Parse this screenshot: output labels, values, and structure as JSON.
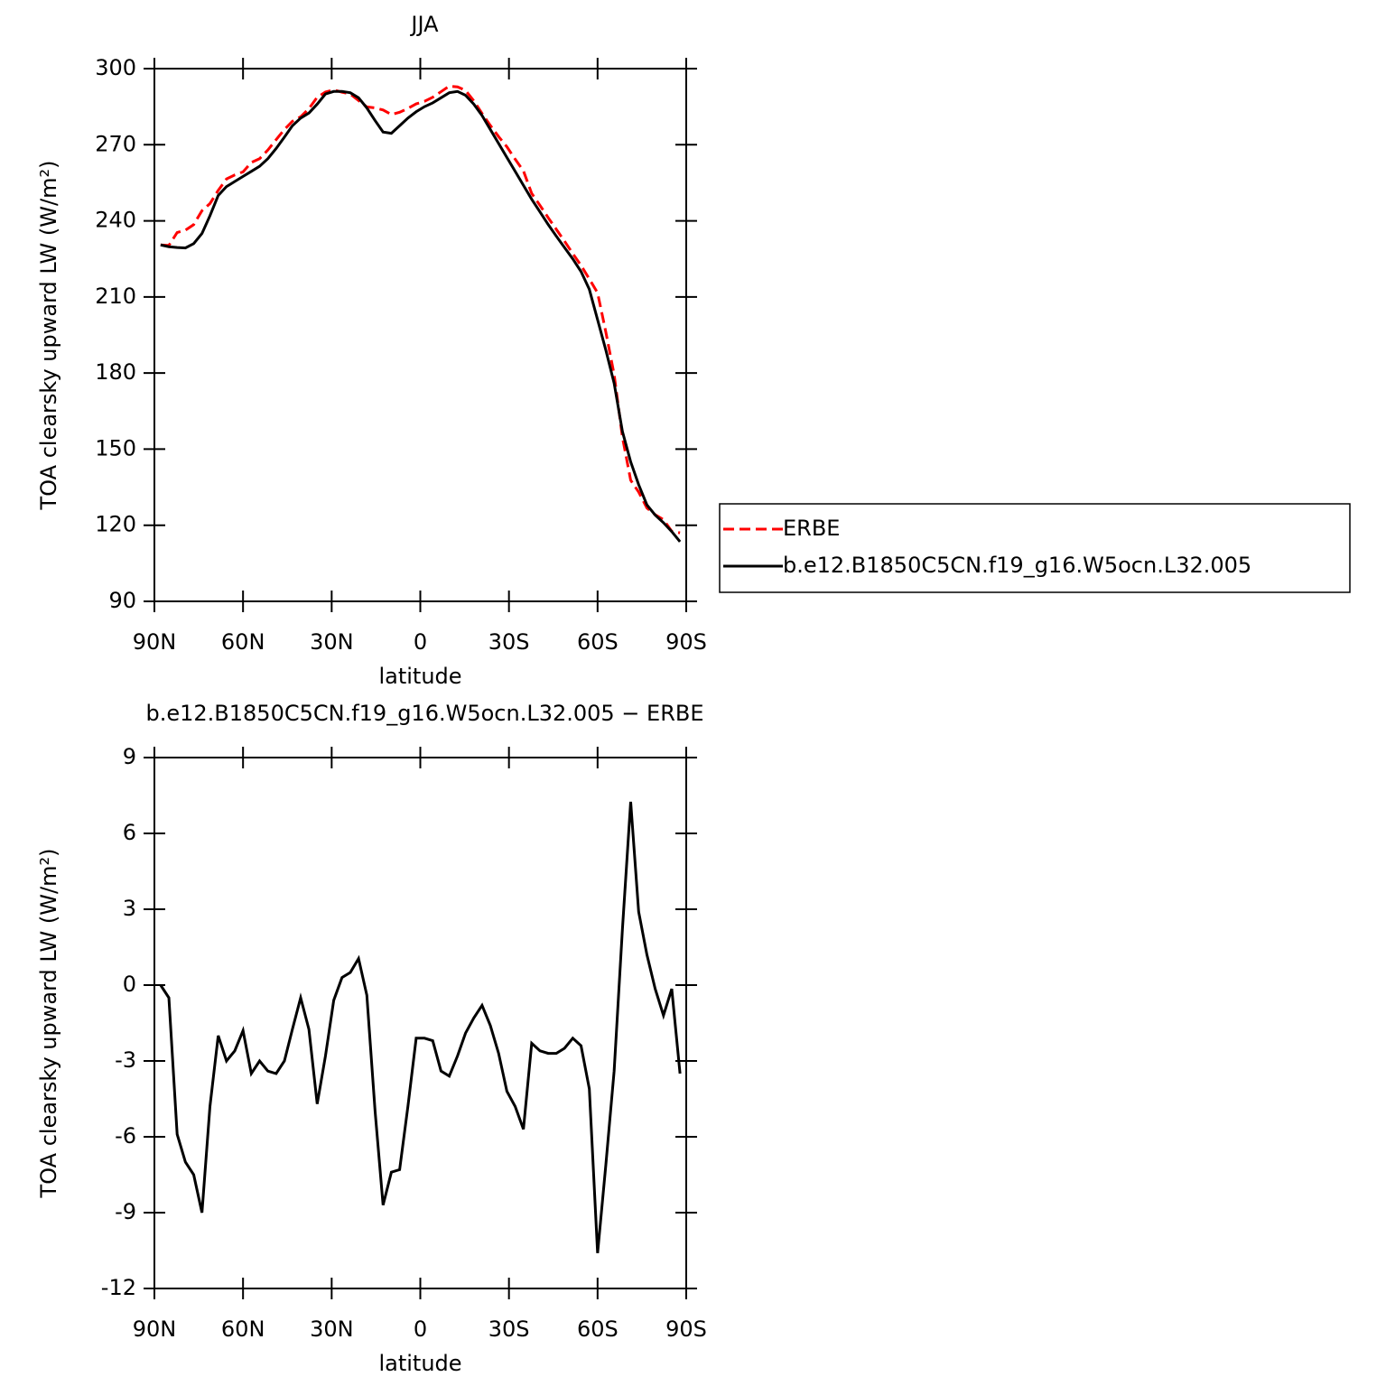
{
  "chart_data": [
    {
      "type": "line",
      "title": "JJA",
      "xlabel": "latitude",
      "ylabel": "TOA clearsky upward LW (W/m²)",
      "x": [
        87.9,
        85.1,
        82.3,
        79.5,
        76.7,
        73.9,
        71.2,
        68.4,
        65.6,
        62.8,
        60.0,
        57.2,
        54.4,
        51.6,
        48.8,
        46.0,
        43.3,
        40.5,
        37.7,
        34.9,
        32.1,
        29.3,
        26.5,
        23.7,
        20.9,
        18.1,
        15.3,
        12.6,
        9.8,
        7.0,
        4.2,
        1.4,
        -1.4,
        -4.2,
        -7.0,
        -9.8,
        -12.6,
        -15.3,
        -18.1,
        -20.9,
        -23.7,
        -26.5,
        -29.3,
        -32.1,
        -34.9,
        -37.7,
        -40.5,
        -43.3,
        -46.0,
        -48.8,
        -51.6,
        -54.4,
        -57.2,
        -60.0,
        -62.8,
        -65.6,
        -68.4,
        -71.2,
        -73.9,
        -76.7,
        -79.5,
        -82.3,
        -85.1,
        -87.9
      ],
      "series": [
        {
          "name": "ERBE",
          "color": "#ff0000",
          "dashed": true,
          "values": [
            230.5,
            230.3,
            235.4,
            236.3,
            238.5,
            244,
            246.8,
            252,
            256.5,
            258.1,
            259.3,
            263,
            264.5,
            267.9,
            272,
            276,
            279.25,
            281,
            284.25,
            288.7,
            290.8,
            291.6,
            290.7,
            290,
            287.45,
            284.9,
            284.5,
            283.7,
            281.9,
            282.8,
            284.3,
            286.1,
            287.1,
            288.7,
            290.9,
            293.1,
            292.8,
            291.4,
            287.3,
            282.3,
            277.6,
            273.2,
            269.2,
            264.3,
            259.7,
            250.8,
            246.1,
            241.2,
            236.7,
            232,
            227.1,
            222.4,
            217.1,
            211.6,
            196.1,
            179.4,
            154.8,
            137.75,
            133.1,
            126.8,
            124.15,
            122.2,
            117.65,
            117
          ]
        },
        {
          "name": "b.e12.B1850C5CN.f19_g16.W5ocn.L32.005",
          "color": "#000000",
          "dashed": false,
          "values": [
            230.5,
            229.8,
            229.5,
            229.3,
            231,
            235,
            242,
            250,
            253.5,
            255.5,
            257.5,
            259.5,
            261.5,
            264.5,
            268.5,
            273,
            277.5,
            280.5,
            282.5,
            286,
            290,
            291,
            291,
            290.5,
            288.5,
            284.5,
            279.5,
            275,
            274.5,
            277.5,
            280.5,
            283,
            285,
            286.5,
            288.5,
            290.5,
            291,
            289.5,
            286,
            281.5,
            276,
            270.5,
            265,
            259.5,
            254,
            248.5,
            243.5,
            238.5,
            234,
            229.5,
            225,
            220,
            213,
            201,
            189,
            176,
            157,
            145,
            136,
            128,
            124,
            121,
            117.5,
            113.5
          ]
        }
      ],
      "xlim": [
        90,
        -90
      ],
      "xticks": [
        {
          "value": 90,
          "label": "90N"
        },
        {
          "value": 60,
          "label": "60N"
        },
        {
          "value": 30,
          "label": "30N"
        },
        0,
        {
          "value": -30,
          "label": "30S"
        },
        {
          "value": -60,
          "label": "60S"
        },
        {
          "value": -90,
          "label": "90S"
        }
      ],
      "ylim": [
        90,
        300
      ],
      "yticks": [
        90,
        120,
        150,
        180,
        210,
        240,
        270,
        300
      ],
      "legend": "right"
    },
    {
      "type": "line",
      "title": "b.e12.B1850C5CN.f19_g16.W5ocn.L32.005 − ERBE",
      "xlabel": "latitude",
      "ylabel": "TOA clearsky upward LW (W/m²)",
      "x": [
        87.9,
        85.1,
        82.3,
        79.5,
        76.7,
        73.9,
        71.2,
        68.4,
        65.6,
        62.8,
        60.0,
        57.2,
        54.4,
        51.6,
        48.8,
        46.0,
        43.3,
        40.5,
        37.7,
        34.9,
        32.1,
        29.3,
        26.5,
        23.7,
        20.9,
        18.1,
        15.3,
        12.6,
        9.8,
        7.0,
        4.2,
        1.4,
        -1.4,
        -4.2,
        -7.0,
        -9.8,
        -12.6,
        -15.3,
        -18.1,
        -20.9,
        -23.7,
        -26.5,
        -29.3,
        -32.1,
        -34.9,
        -37.7,
        -40.5,
        -43.3,
        -46.0,
        -48.8,
        -51.6,
        -54.4,
        -57.2,
        -60.0,
        -62.8,
        -65.6,
        -68.4,
        -71.2,
        -73.9,
        -76.7,
        -79.5,
        -82.3,
        -85.1,
        -87.9
      ],
      "values": [
        0,
        -0.5,
        -5.9,
        -7.0,
        -7.5,
        -9.0,
        -4.8,
        -2.0,
        -3.0,
        -2.6,
        -1.8,
        -3.5,
        -3.0,
        -3.4,
        -3.5,
        -3.0,
        -1.75,
        -0.5,
        -1.75,
        -4.7,
        -2.8,
        -0.6,
        0.3,
        0.5,
        1.05,
        -0.4,
        -5.0,
        -8.7,
        -7.4,
        -7.3,
        -4.8,
        -2.1,
        -2.1,
        -2.2,
        -3.4,
        -3.6,
        -2.8,
        -1.9,
        -1.3,
        -0.8,
        -1.6,
        -2.7,
        -4.2,
        -4.8,
        -5.7,
        -2.3,
        -2.6,
        -2.7,
        -2.7,
        -2.5,
        -2.1,
        -2.4,
        -4.1,
        -10.6,
        -7.1,
        -3.4,
        2.2,
        7.25,
        2.9,
        1.2,
        -0.15,
        -1.2,
        -0.15,
        -3.5
      ],
      "color": "#000000",
      "xlim": [
        90,
        -90
      ],
      "xticks": [
        {
          "value": 90,
          "label": "90N"
        },
        {
          "value": 60,
          "label": "60N"
        },
        {
          "value": 30,
          "label": "30N"
        },
        0,
        {
          "value": -30,
          "label": "30S"
        },
        {
          "value": -60,
          "label": "60S"
        },
        {
          "value": -90,
          "label": "90S"
        }
      ],
      "ylim": [
        -12,
        9
      ],
      "yticks": [
        -12,
        -9,
        -6,
        -3,
        0,
        3,
        6,
        9
      ]
    }
  ]
}
